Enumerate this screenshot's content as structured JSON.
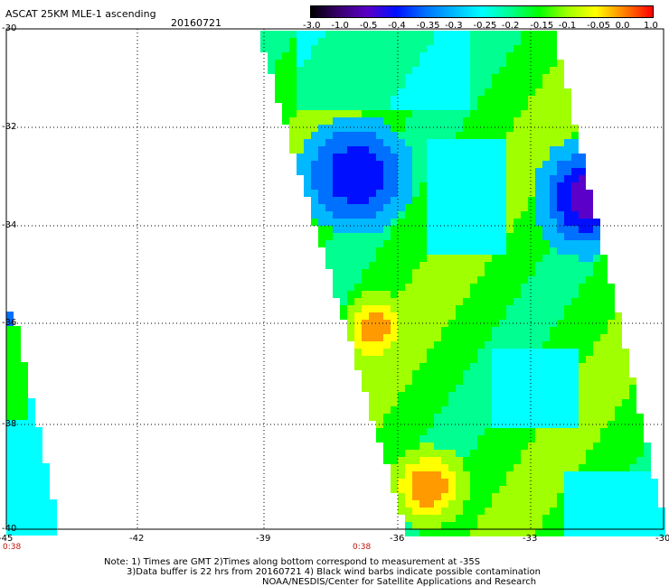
{
  "header": {
    "title": "ASCAT 25KM MLE-1 ascending",
    "date": "20160721"
  },
  "colorbar": {
    "labels": [
      "-3.0",
      "-1.0",
      "-0.5",
      "-0.4",
      "-0.35",
      "-0.3",
      "-0.25",
      "-0.2",
      "-0.15",
      "-0.1",
      "-0.05",
      "0.0",
      "1.0"
    ],
    "colors": [
      "#000000",
      "#3a0070",
      "#5a00c8",
      "#0010ff",
      "#0070ff",
      "#00b8ff",
      "#00ffff",
      "#00ff90",
      "#00ff00",
      "#a0ff00",
      "#ffff00",
      "#ff8000",
      "#ff0000"
    ]
  },
  "axes": {
    "lon_labels": [
      "-45",
      "-42",
      "-39",
      "-36",
      "-33",
      "-30"
    ],
    "lat_labels": [
      "-30",
      "-32",
      "-34",
      "-36",
      "-38",
      "-40"
    ]
  },
  "time_markers": [
    "0:38",
    "0:38"
  ],
  "notes": {
    "line1": "Note: 1) Times are GMT 2)Times along bottom correspond to measurement at -35S",
    "line2": "3)Data buffer is 22 hrs from 20160721 4) Black wind barbs indicate possible contamination",
    "line3": "NOAA/NESDIS/Center for Satellite Applications and Research"
  }
}
